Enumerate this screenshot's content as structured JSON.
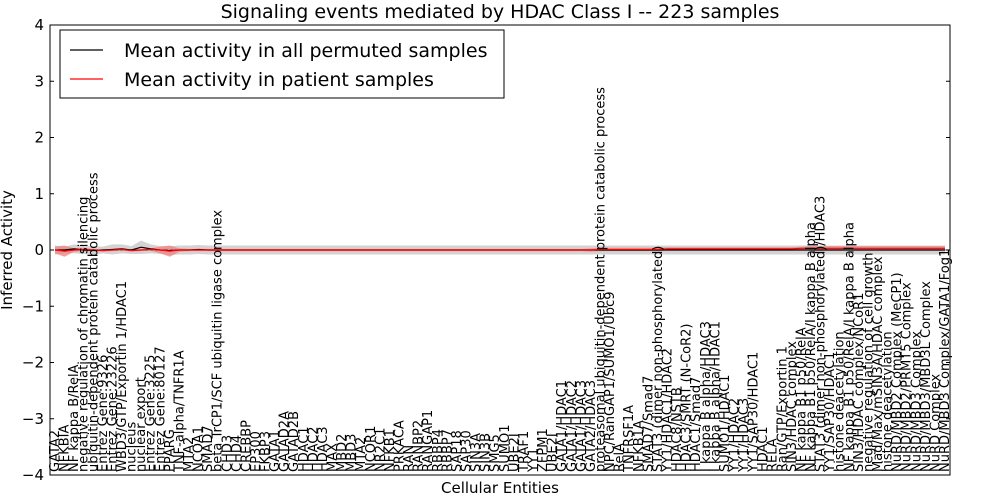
{
  "chart_data": {
    "type": "line",
    "title": "Signaling events mediated by HDAC Class I -- 223 samples",
    "xlabel": "Cellular Entities",
    "ylabel": "Inferred Activity",
    "ylim": [
      -4,
      4
    ],
    "yticks": [
      "4",
      "3",
      "2",
      "1",
      "0",
      "−1",
      "−2",
      "−3",
      "−4"
    ],
    "grid": false,
    "legend_position": "top-left",
    "legend": [
      "Mean activity in all permuted samples",
      "Mean activity in patient samples"
    ],
    "colors": {
      "permuted": "#000000",
      "patient": "#ff0000",
      "permuted_band": "#c8c8c8",
      "patient_band": "#f08080"
    },
    "categories": [
      "GATA2",
      "NFKBIA",
      "NF kappa B/RelA",
      "negative regulation of chromatin silencing",
      "ubiquitin-dependent protein catabolic process",
      "Entrez Gene:9326",
      "Entrez Gene:23226",
      "WBD3/GTP/Exportin 1/HDAC1",
      "nucleus",
      "nuclear export",
      "Entrez Gene:3225",
      "Entrez Gene:80127",
      "PPARG",
      "TNF-alpha/TNFR1A",
      "MTA2",
      "NCOA1",
      "SMAD7",
      "beta TrCP1/SCF ubiquitin ligase complex",
      "CHD3",
      "CHD4",
      "CREBBP",
      "EP300",
      "FKBP3",
      "GATA1",
      "GATAD2A",
      "GATAD2B",
      "HDAC1",
      "HDAC2",
      "HDAC3",
      "MAX",
      "MBD2",
      "MBD3",
      "MTA2",
      "NCOR1",
      "NR2C1",
      "NFKB1",
      "PRKACA",
      "RAN",
      "RANBP2",
      "RANGAP1",
      "RBBP4",
      "RBBP7",
      "SAP18",
      "SAP30",
      "SIN3A",
      "SIN3B",
      "SMG5",
      "SUMO1",
      "UBE2I",
      "TRAF1",
      "YY1",
      "ZFPM1",
      "UBE2I",
      "GATA1/HDAC1",
      "GATA1/HDAC2",
      "GATA1/HDAC3",
      "GATA2/HDAC3",
      "proteasomal ubiquitin-dependent protein catabolic process",
      "NPC/RanGAP1/SUMO1/Ubc9",
      "RelA",
      "TNFRSF1A",
      "NFKB1A",
      "SMAD7/Smad7",
      "STAT3 (dimer non-phosphorylated)",
      "YY1/HDAC1/HDAC2",
      "HDAC8/NSTB",
      "HDAC3/SMRT (N-CoR2)",
      "HDAC1/Smad7",
      "I kappa B alpha/HDAC3",
      "I kappa B alpha/HDAC1",
      "SUMO1/HDAC1",
      "YY1/HDAC2",
      "YY1/HDAC3",
      "YY1/SAP30/HDAC1",
      "HDAC1",
      "RELA",
      "Ran/GTP/Exportin 1",
      "SIN3/HDAC complex",
      "NF kappa B1 p50/RelA",
      "NF kappa B1 p50/RelA/I kappa B alpha",
      "STAT3 (dimer non-phosphorylated)/HDAC3",
      "YY1/SAP30/HDAC1",
      "histone deacetylation",
      "NF kappa B1 p50/RelA/I kappa B alpha",
      "SIN3/HDAC complex/NCoR1",
      "negative regulation of cell growth",
      "Mad/Max/mSIN3A/HDAC complex",
      "histone deacetylation",
      "NuRD/MBD2 Complex (MeCP1)",
      "NuRD/MBD2/PRMT5 Complex",
      "NuRD/MBD3 Complex",
      "NuRD/MBD3/MBD3L Complex",
      "NuRD Complex",
      "NuRD/MBD3 Complex/GATA1/Fog1"
    ],
    "series": [
      {
        "name": "Mean activity in all permuted samples",
        "values": [
          0.0,
          0.0,
          0.02,
          0.0,
          -0.01,
          0.0,
          0.01,
          0.02,
          0.0,
          0.05,
          0.02,
          0.0,
          -0.01,
          0.0,
          0.0,
          0.01,
          0.0,
          0.0,
          0.0,
          0.0,
          0.0,
          0.0,
          0.0,
          0.0,
          0.0,
          0.0,
          0.0,
          0.0,
          0.0,
          0.0,
          0.0,
          0.0,
          0.0,
          0.0,
          0.0,
          0.0,
          0.0,
          0.0,
          0.0,
          0.0,
          0.0,
          0.0,
          0.0,
          0.0,
          0.0,
          0.0,
          0.0,
          0.0,
          0.0,
          0.0,
          0.0,
          0.0,
          0.0,
          0.0,
          0.0,
          0.0,
          0.0,
          0.0,
          0.0,
          0.0,
          0.0,
          0.0,
          0.0,
          0.0,
          0.0,
          0.0,
          0.0,
          0.0,
          0.0,
          0.0,
          0.0,
          0.0,
          0.0,
          0.0,
          0.0,
          0.0,
          0.0,
          0.0,
          0.0,
          0.0,
          0.0,
          0.0,
          0.0,
          0.0,
          0.0,
          0.0,
          0.0,
          0.0,
          0.0,
          0.0,
          0.0,
          0.0,
          0.0,
          0.0
        ]
      },
      {
        "name": "Mean activity in patient samples",
        "values": [
          0.0,
          -0.02,
          0.0,
          0.01,
          0.0,
          -0.01,
          0.0,
          0.01,
          -0.01,
          0.0,
          0.01,
          0.0,
          -0.02,
          0.0,
          0.0,
          0.0,
          0.0,
          0.0,
          0.0,
          0.0,
          0.0,
          0.0,
          0.0,
          0.0,
          0.0,
          0.0,
          0.0,
          0.0,
          0.0,
          0.0,
          0.0,
          0.0,
          0.0,
          0.0,
          0.0,
          0.0,
          0.0,
          0.0,
          0.0,
          0.0,
          0.0,
          0.0,
          0.0,
          0.0,
          0.0,
          0.0,
          0.0,
          0.0,
          0.0,
          0.0,
          0.0,
          0.0,
          0.0,
          0.0,
          0.0,
          0.0,
          0.0,
          0.01,
          0.01,
          0.01,
          0.01,
          0.01,
          0.01,
          0.01,
          0.02,
          0.02,
          0.02,
          0.02,
          0.02,
          0.02,
          0.02,
          0.02,
          0.02,
          0.02,
          0.02,
          0.02,
          0.02,
          0.02,
          0.03,
          0.03,
          0.03,
          0.03,
          0.03,
          0.03,
          0.03,
          0.03,
          0.03,
          0.03,
          0.03,
          0.03,
          0.03,
          0.03,
          0.03,
          0.03
        ]
      }
    ],
    "bands": {
      "permuted_halfwidth": [
        0.08,
        0.06,
        0.08,
        0.07,
        0.08,
        0.06,
        0.09,
        0.08,
        0.07,
        0.12,
        0.08,
        0.07,
        0.08,
        0.08,
        0.08,
        0.08,
        0.08,
        0.08,
        0.08,
        0.08,
        0.08,
        0.08,
        0.08,
        0.08,
        0.08,
        0.08,
        0.08,
        0.08,
        0.08,
        0.08,
        0.08,
        0.08,
        0.08,
        0.08,
        0.08,
        0.08,
        0.08,
        0.08,
        0.08,
        0.08,
        0.08,
        0.08,
        0.08,
        0.08,
        0.08,
        0.08,
        0.08,
        0.08,
        0.08,
        0.08,
        0.08,
        0.08,
        0.08,
        0.08,
        0.08,
        0.08,
        0.08,
        0.08,
        0.08,
        0.08,
        0.08,
        0.08,
        0.08,
        0.08,
        0.08,
        0.08,
        0.08,
        0.08,
        0.08,
        0.08,
        0.08,
        0.08,
        0.08,
        0.08,
        0.08,
        0.08,
        0.08,
        0.08,
        0.08,
        0.08,
        0.08,
        0.08,
        0.08,
        0.08,
        0.08,
        0.08,
        0.08,
        0.08,
        0.08,
        0.08,
        0.08,
        0.08,
        0.08,
        0.08
      ],
      "patient_halfwidth": [
        0.06,
        0.1,
        0.03,
        0.03,
        0.02,
        0.02,
        0.02,
        0.02,
        0.02,
        0.02,
        0.02,
        0.06,
        0.1,
        0.03,
        0.02,
        0.02,
        0.02,
        0.02,
        0.02,
        0.02,
        0.02,
        0.02,
        0.02,
        0.02,
        0.02,
        0.02,
        0.02,
        0.02,
        0.02,
        0.02,
        0.02,
        0.02,
        0.02,
        0.02,
        0.02,
        0.02,
        0.02,
        0.02,
        0.02,
        0.02,
        0.02,
        0.02,
        0.02,
        0.02,
        0.02,
        0.02,
        0.02,
        0.02,
        0.02,
        0.02,
        0.02,
        0.02,
        0.02,
        0.02,
        0.02,
        0.02,
        0.03,
        0.03,
        0.03,
        0.03,
        0.03,
        0.03,
        0.03,
        0.03,
        0.03,
        0.03,
        0.03,
        0.03,
        0.03,
        0.03,
        0.03,
        0.03,
        0.03,
        0.03,
        0.03,
        0.03,
        0.03,
        0.03,
        0.03,
        0.04,
        0.04,
        0.04,
        0.04,
        0.04,
        0.04,
        0.04,
        0.04,
        0.04,
        0.04,
        0.04,
        0.04,
        0.04,
        0.04,
        0.04
      ]
    }
  }
}
